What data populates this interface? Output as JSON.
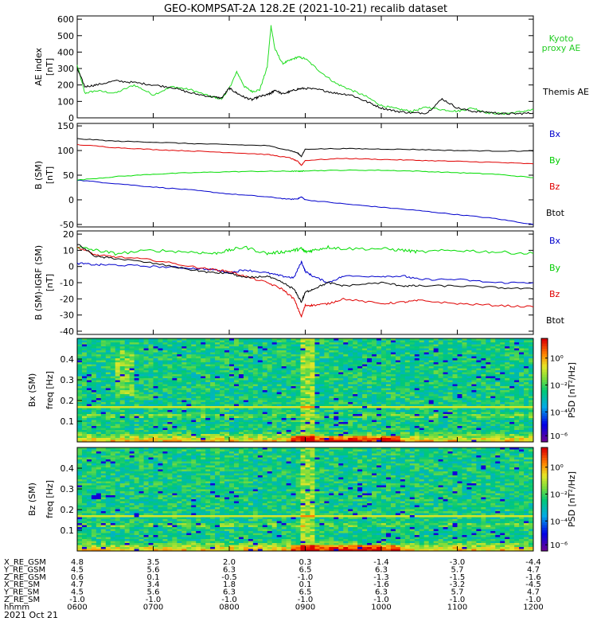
{
  "title": "GEO-KOMPSAT-2A 128.2E (2021-10-21) recalib dataset",
  "colors": {
    "black": "#000000",
    "green": "#00e000",
    "red": "#e00000",
    "blue": "#0000cc",
    "kyoto": "#22cc22"
  },
  "panels": [
    {
      "key": "ae",
      "ylabel": "AE index",
      "unit": "[nT]",
      "ylim": [
        0,
        620
      ],
      "yticks": [
        0,
        100,
        200,
        300,
        400,
        500,
        600
      ],
      "legend": [
        {
          "text": "Kyoto proxy AE",
          "color": "#22cc22"
        },
        {
          "text": "Themis AE",
          "color": "#000000"
        }
      ]
    },
    {
      "key": "b",
      "ylabel": "B (SM)",
      "unit": "[nT]",
      "ylim": [
        -55,
        155
      ],
      "yticks": [
        -50,
        0,
        50,
        100,
        150
      ],
      "legend": [
        {
          "text": "Bx",
          "color": "#0000cc"
        },
        {
          "text": "By",
          "color": "#00cc00"
        },
        {
          "text": "Bz",
          "color": "#e00000"
        },
        {
          "text": "Btot",
          "color": "#000000"
        }
      ]
    },
    {
      "key": "db",
      "ylabel": "B (SM)-IGRF (SM)",
      "unit": "[nT]",
      "ylim": [
        -42,
        22
      ],
      "yticks": [
        -40,
        -30,
        -20,
        -10,
        0,
        10,
        20
      ],
      "legend": [
        {
          "text": "Bx",
          "color": "#0000cc"
        },
        {
          "text": "By",
          "color": "#00cc00"
        },
        {
          "text": "Bz",
          "color": "#e00000"
        },
        {
          "text": "Btot",
          "color": "#000000"
        }
      ]
    }
  ],
  "spectra": [
    {
      "key": "bx",
      "component": "Bx (SM)",
      "ylabel": "freq [Hz]",
      "yticks": [
        "0.1",
        "0.2",
        "0.3",
        "0.4"
      ],
      "cbar_label": "PSD [nT²/Hz]",
      "cbar_ticks": [
        "10⁰",
        "10⁻²",
        "10⁻⁴",
        "10⁻⁶"
      ]
    },
    {
      "key": "bz",
      "component": "Bz (SM)",
      "ylabel": "freq [Hz]",
      "yticks": [
        "0.1",
        "0.2",
        "0.3",
        "0.4"
      ],
      "cbar_label": "PSD [nT²/Hz]",
      "cbar_ticks": [
        "10⁰",
        "10⁻²",
        "10⁻⁴",
        "10⁻⁶"
      ]
    }
  ],
  "xaxis": {
    "hhmm": [
      "0600",
      "0700",
      "0800",
      "0900",
      "1000",
      "1100",
      "1200"
    ],
    "date": "2021 Oct 21",
    "rows": [
      {
        "name": "X_RE_GSM",
        "values": [
          "4.8",
          "3.5",
          "2.0",
          "0.3",
          "-1.4",
          "-3.0",
          "-4.4"
        ]
      },
      {
        "name": "Y_RE_GSM",
        "values": [
          "4.5",
          "5.6",
          "6.3",
          "6.5",
          "6.3",
          "5.7",
          "4.7"
        ]
      },
      {
        "name": "Z_RE_GSM",
        "values": [
          "0.6",
          "0.1",
          "-0.5",
          "-1.0",
          "-1.3",
          "-1.5",
          "-1.6"
        ]
      },
      {
        "name": "X_RE_SM",
        "values": [
          "4.7",
          "3.4",
          "1.8",
          "0.1",
          "-1.6",
          "-3.2",
          "-4.5"
        ]
      },
      {
        "name": "Y_RE_SM",
        "values": [
          "4.5",
          "5.6",
          "6.3",
          "6.5",
          "6.3",
          "5.7",
          "4.7"
        ]
      },
      {
        "name": "Z_RE_SM",
        "values": [
          "-1.0",
          "-1.0",
          "-1.0",
          "-1.0",
          "-1.0",
          "-1.0",
          "-1.0"
        ]
      },
      {
        "name": "hhmm",
        "values": [
          "0600",
          "0700",
          "0800",
          "0900",
          "1000",
          "1100",
          "1200"
        ]
      }
    ]
  },
  "chart_data": [
    {
      "type": "line",
      "title": "AE index",
      "ylabel": "AE index [nT]",
      "x_hours": [
        6,
        6.1,
        6.25,
        6.5,
        6.75,
        7,
        7.25,
        7.5,
        7.75,
        7.9,
        8,
        8.1,
        8.2,
        8.3,
        8.4,
        8.5,
        8.55,
        8.6,
        8.7,
        8.8,
        8.9,
        9,
        9.2,
        9.4,
        9.6,
        9.8,
        10,
        10.2,
        10.4,
        10.6,
        10.8,
        11,
        11.2,
        11.4,
        11.6,
        11.8,
        12
      ],
      "series": [
        {
          "name": "Kyoto proxy AE",
          "values": [
            320,
            150,
            165,
            150,
            200,
            140,
            190,
            170,
            130,
            115,
            180,
            280,
            190,
            160,
            170,
            310,
            560,
            420,
            330,
            350,
            370,
            360,
            280,
            210,
            170,
            130,
            75,
            55,
            40,
            65,
            50,
            40,
            60,
            30,
            25,
            35,
            50
          ]
        },
        {
          "name": "Themis AE",
          "values": [
            300,
            190,
            200,
            225,
            215,
            200,
            185,
            150,
            130,
            120,
            180,
            150,
            125,
            110,
            130,
            140,
            150,
            170,
            145,
            160,
            175,
            180,
            170,
            150,
            140,
            100,
            60,
            40,
            30,
            30,
            115,
            60,
            40,
            35,
            25,
            25,
            30
          ]
        }
      ]
    },
    {
      "type": "line",
      "title": "B (SM)",
      "ylabel": "B (SM) [nT]",
      "x_hours": [
        6,
        6.5,
        7,
        7.5,
        8,
        8.5,
        8.8,
        8.9,
        8.95,
        9,
        9.5,
        10,
        10.5,
        11,
        11.5,
        12
      ],
      "series": [
        {
          "name": "Bx",
          "values": [
            40,
            33,
            26,
            20,
            12,
            6,
            1,
            2,
            6,
            0,
            -8,
            -15,
            -22,
            -30,
            -38,
            -50
          ]
        },
        {
          "name": "By",
          "values": [
            40,
            47,
            52,
            55,
            57,
            58,
            58,
            58,
            58,
            59,
            60,
            60,
            58,
            55,
            52,
            45
          ]
        },
        {
          "name": "Bz",
          "values": [
            112,
            106,
            102,
            99,
            96,
            92,
            85,
            78,
            70,
            80,
            84,
            82,
            80,
            78,
            76,
            73
          ]
        },
        {
          "name": "Btot",
          "values": [
            124,
            119,
            117,
            114,
            112,
            110,
            100,
            95,
            88,
            103,
            104,
            103,
            102,
            100,
            99,
            99
          ]
        }
      ]
    },
    {
      "type": "line",
      "title": "B (SM)-IGRF (SM)",
      "ylabel": "B (SM)-IGRF (SM) [nT]",
      "x_hours": [
        6,
        6.25,
        6.5,
        7,
        7.5,
        7.8,
        8,
        8.2,
        8.5,
        8.7,
        8.85,
        8.95,
        9,
        9.1,
        9.3,
        9.5,
        10,
        10.3,
        10.5,
        11,
        11.5,
        12
      ],
      "series": [
        {
          "name": "Bx",
          "values": [
            2,
            1,
            1,
            0,
            -1,
            -2,
            -4,
            -2,
            -4,
            -6,
            -7,
            3,
            -3,
            -6,
            -10,
            -6,
            -6,
            -6,
            -8,
            -8,
            -10,
            -10
          ]
        },
        {
          "name": "By",
          "values": [
            12,
            10,
            8,
            10,
            9,
            8,
            10,
            12,
            8,
            9,
            10,
            11,
            9,
            10,
            12,
            11,
            11,
            10,
            9,
            10,
            9,
            8
          ]
        },
        {
          "name": "Bz",
          "values": [
            12,
            7,
            6,
            4,
            0,
            -2,
            -3,
            -6,
            -10,
            -14,
            -20,
            -31,
            -24,
            -24,
            -23,
            -20,
            -23,
            -22,
            -21,
            -23,
            -24,
            -25
          ]
        },
        {
          "name": "Btot",
          "values": [
            14,
            6,
            5,
            2,
            -2,
            -4,
            -4,
            -7,
            -6,
            -10,
            -14,
            -22,
            -16,
            -14,
            -10,
            -12,
            -10,
            -12,
            -12,
            -12,
            -13,
            -14
          ]
        }
      ]
    }
  ]
}
